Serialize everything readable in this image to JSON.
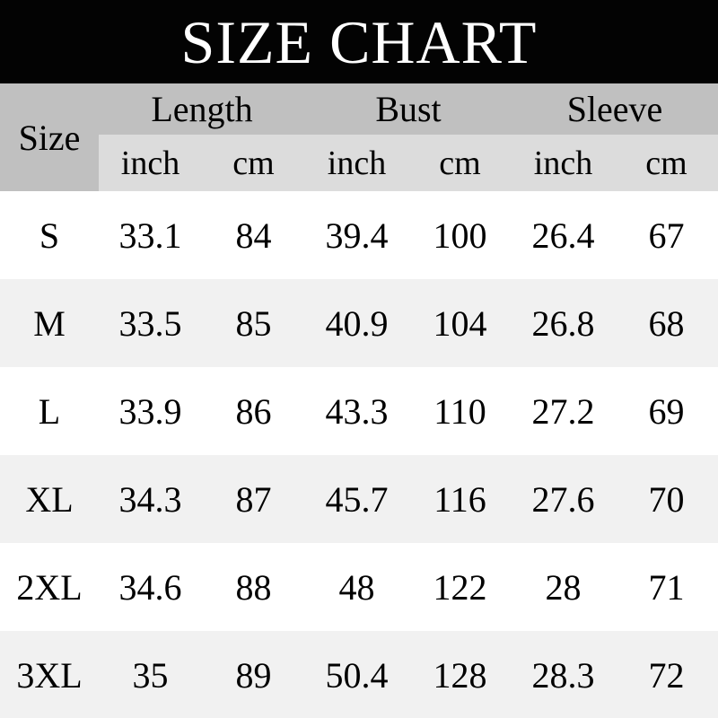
{
  "title": "SIZE CHART",
  "colors": {
    "banner_background": "#030303",
    "title_text": "#ffffff",
    "header_background": "#c0c0c0",
    "unit_header_background": "#dcdcdc",
    "row_background": "#ffffff",
    "row_alt_background": "#f1f1f1",
    "text": "#000000"
  },
  "table": {
    "size_header": "Size",
    "groups": [
      {
        "label": "Length"
      },
      {
        "label": "Bust"
      },
      {
        "label": "Sleeve"
      }
    ],
    "unit_headers": [
      "inch",
      "cm",
      "inch",
      "cm",
      "inch",
      "cm"
    ],
    "rows": [
      {
        "size": "S",
        "values": [
          "33.1",
          "84",
          "39.4",
          "100",
          "26.4",
          "67"
        ]
      },
      {
        "size": "M",
        "values": [
          "33.5",
          "85",
          "40.9",
          "104",
          "26.8",
          "68"
        ]
      },
      {
        "size": "L",
        "values": [
          "33.9",
          "86",
          "43.3",
          "110",
          "27.2",
          "69"
        ]
      },
      {
        "size": "XL",
        "values": [
          "34.3",
          "87",
          "45.7",
          "116",
          "27.6",
          "70"
        ]
      },
      {
        "size": "2XL",
        "values": [
          "34.6",
          "88",
          "48",
          "122",
          "28",
          "71"
        ]
      },
      {
        "size": "3XL",
        "values": [
          "35",
          "89",
          "50.4",
          "128",
          "28.3",
          "72"
        ]
      }
    ]
  },
  "chart_data": {
    "type": "table",
    "title": "SIZE CHART",
    "columns": [
      "Size",
      "Length (inch)",
      "Length (cm)",
      "Bust (inch)",
      "Bust (cm)",
      "Sleeve (inch)",
      "Sleeve (cm)"
    ],
    "rows": [
      [
        "S",
        33.1,
        84,
        39.4,
        100,
        26.4,
        67
      ],
      [
        "M",
        33.5,
        85,
        40.9,
        104,
        26.8,
        68
      ],
      [
        "L",
        33.9,
        86,
        43.3,
        110,
        27.2,
        69
      ],
      [
        "XL",
        34.3,
        87,
        45.7,
        116,
        27.6,
        70
      ],
      [
        "2XL",
        34.6,
        88,
        48,
        122,
        28,
        71
      ],
      [
        "3XL",
        35,
        89,
        50.4,
        128,
        28.3,
        72
      ]
    ]
  }
}
